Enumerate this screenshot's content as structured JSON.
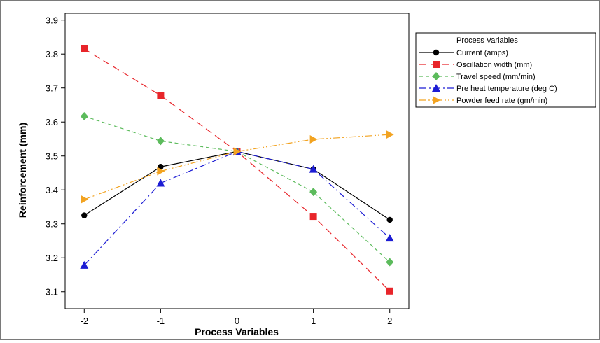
{
  "chart_data": {
    "type": "line",
    "xlabel": "Process Variables",
    "ylabel": "Reinforcement (mm)",
    "x": [
      -2,
      -1,
      0,
      1,
      2
    ],
    "xlim": [
      -2.25,
      2.25
    ],
    "ylim": [
      3.05,
      3.92
    ],
    "x_ticks": [
      "-2",
      "-1",
      "0",
      "1",
      "2"
    ],
    "y_ticks": [
      "3.1",
      "3.2",
      "3.3",
      "3.4",
      "3.5",
      "3.6",
      "3.7",
      "3.8",
      "3.9"
    ],
    "y_tick_values": [
      3.1,
      3.2,
      3.3,
      3.4,
      3.5,
      3.6,
      3.7,
      3.8,
      3.9
    ],
    "grid": false,
    "legend_title": "Process Variables",
    "legend_position": "right",
    "series": [
      {
        "name": "Current (amps)",
        "values": [
          3.325,
          3.468,
          3.513,
          3.461,
          3.312
        ],
        "color": "#000000",
        "marker": "circle",
        "dash": "solid"
      },
      {
        "name": "Oscillation width (mm)",
        "values": [
          3.815,
          3.678,
          3.513,
          3.322,
          3.102
        ],
        "color": "#e8252a",
        "marker": "square",
        "dash": "long-dash"
      },
      {
        "name": "Travel speed (mm/min)",
        "values": [
          3.617,
          3.544,
          3.513,
          3.394,
          3.187
        ],
        "color": "#5cbb5c",
        "marker": "diamond",
        "dash": "short-dash"
      },
      {
        "name": "Pre heat temperature (deg C)",
        "values": [
          3.178,
          3.42,
          3.513,
          3.461,
          3.258
        ],
        "color": "#1c1cd4",
        "marker": "triangle-up",
        "dash": "dash-dot"
      },
      {
        "name": "Powder feed rate (gm/min)",
        "values": [
          3.372,
          3.455,
          3.513,
          3.549,
          3.563
        ],
        "color": "#f2a321",
        "marker": "triangle-right",
        "dash": "dash-dot-dot"
      }
    ]
  }
}
